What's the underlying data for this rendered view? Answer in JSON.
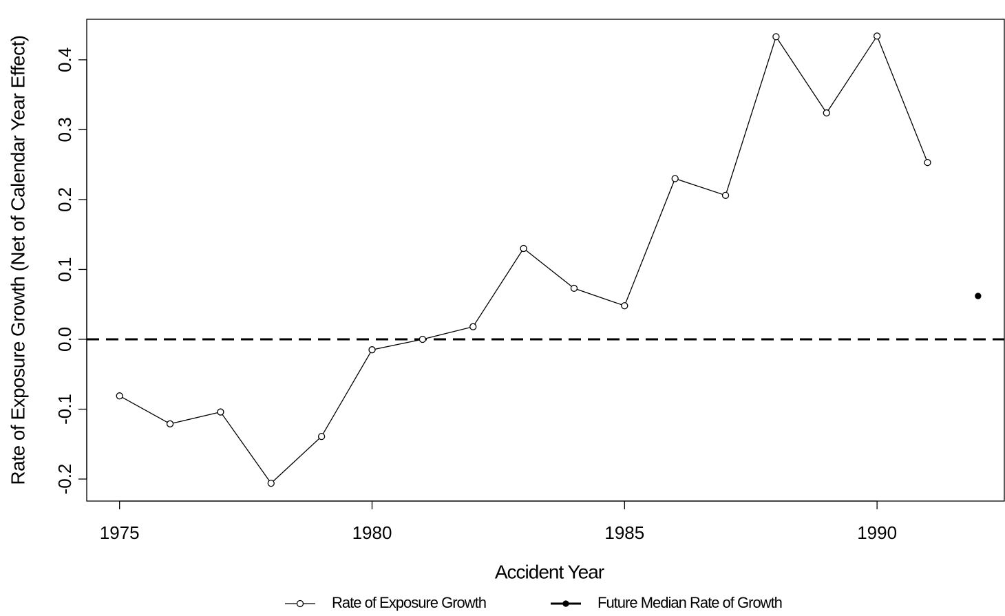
{
  "chart_data": {
    "type": "line",
    "xlabel": "Accident Year",
    "ylabel": "Rate of Exposure Growth (Net of Calendar Year Effect)",
    "series": [
      {
        "name": "Rate of Exposure Growth",
        "color": "#000000",
        "marker": "open-circle",
        "x": [
          1975,
          1976,
          1977,
          1978,
          1979,
          1980,
          1981,
          1982,
          1983,
          1984,
          1985,
          1986,
          1987,
          1988,
          1989,
          1990,
          1991
        ],
        "values": [
          -0.081,
          -0.121,
          -0.104,
          -0.206,
          -0.139,
          -0.015,
          0.0,
          0.018,
          0.13,
          0.073,
          0.048,
          0.23,
          0.206,
          0.433,
          0.324,
          0.434,
          0.253
        ]
      },
      {
        "name": "Future Median Rate of Growth",
        "color": "#000000",
        "marker": "filled-circle",
        "x": [
          1992
        ],
        "values": [
          0.062
        ]
      }
    ],
    "reference_line": 0,
    "xlim": [
      1974.35,
      1992.52
    ],
    "ylim": [
      -0.2315,
      0.458
    ],
    "xticks": [
      1975,
      1980,
      1985,
      1990
    ],
    "yticks": [
      -0.2,
      -0.1,
      {
        "value": 0,
        "label": "0.0"
      },
      0.1,
      0.2,
      0.3,
      0.4
    ],
    "legend": "bottom"
  }
}
